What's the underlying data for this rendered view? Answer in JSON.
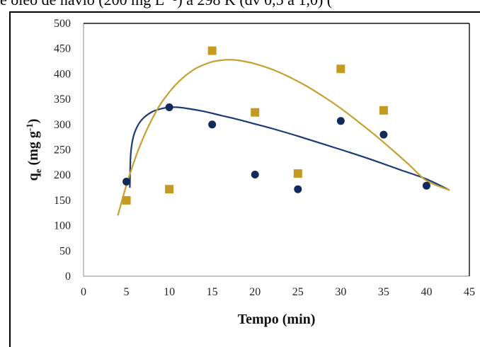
{
  "caption": "e óleo de navio (200 mg L⁻¹) a 298 K (dv 0,5 a 1,0) (",
  "chart_data": {
    "type": "scatter",
    "title": "",
    "xlabel": "Tempo (min)",
    "ylabel_main": "q",
    "ylabel_sub": "e",
    "ylabel_rest": " (mg g",
    "ylabel_sup": "-1",
    "ylabel_close": ")",
    "xlim": [
      0,
      45
    ],
    "ylim": [
      0,
      500
    ],
    "x_ticks": [
      "0",
      "5",
      "10",
      "15",
      "20",
      "25",
      "30",
      "35",
      "40",
      "45"
    ],
    "y_ticks": [
      "0",
      "50",
      "100",
      "150",
      "200",
      "250",
      "300",
      "350",
      "400",
      "450",
      "500"
    ],
    "grid": false,
    "legend": "none",
    "series": [
      {
        "marker": "circle",
        "color": "#102a5c",
        "x": [
          5,
          10,
          15,
          20,
          25,
          30,
          35,
          40
        ],
        "y": [
          187,
          334,
          300,
          201,
          172,
          307,
          280,
          179
        ]
      },
      {
        "marker": "square",
        "color": "#c49a22",
        "x": [
          5,
          10,
          15,
          20,
          25,
          30,
          35
        ],
        "y": [
          150,
          172,
          446,
          324,
          203,
          410,
          328
        ]
      }
    ],
    "fit_curves": [
      {
        "color": "#1c3a78",
        "x": [
          5.4,
          5.5,
          5.8,
          6.3,
          7,
          8,
          9,
          10,
          11,
          12,
          14,
          16,
          18,
          20,
          22,
          25,
          28,
          31,
          34,
          37,
          40,
          42.7
        ],
        "y": [
          175,
          240,
          275,
          297,
          313,
          325,
          331,
          334,
          334,
          332,
          326,
          318,
          310,
          301,
          292,
          277,
          261,
          245,
          228,
          210,
          192,
          170
        ]
      },
      {
        "color": "#c4a030",
        "x": [
          4,
          5,
          6,
          7,
          8,
          9,
          10,
          11,
          12,
          13,
          14,
          15,
          16,
          17,
          18,
          19,
          20,
          22,
          24,
          26,
          28,
          30,
          32,
          34,
          36,
          38,
          40,
          42.7
        ],
        "y": [
          120,
          180,
          232,
          275,
          311,
          341,
          364,
          383,
          398,
          410,
          418,
          424,
          427,
          428,
          427,
          424,
          420,
          409,
          394,
          376,
          355,
          332,
          306,
          279,
          250,
          220,
          189,
          170
        ]
      }
    ]
  }
}
